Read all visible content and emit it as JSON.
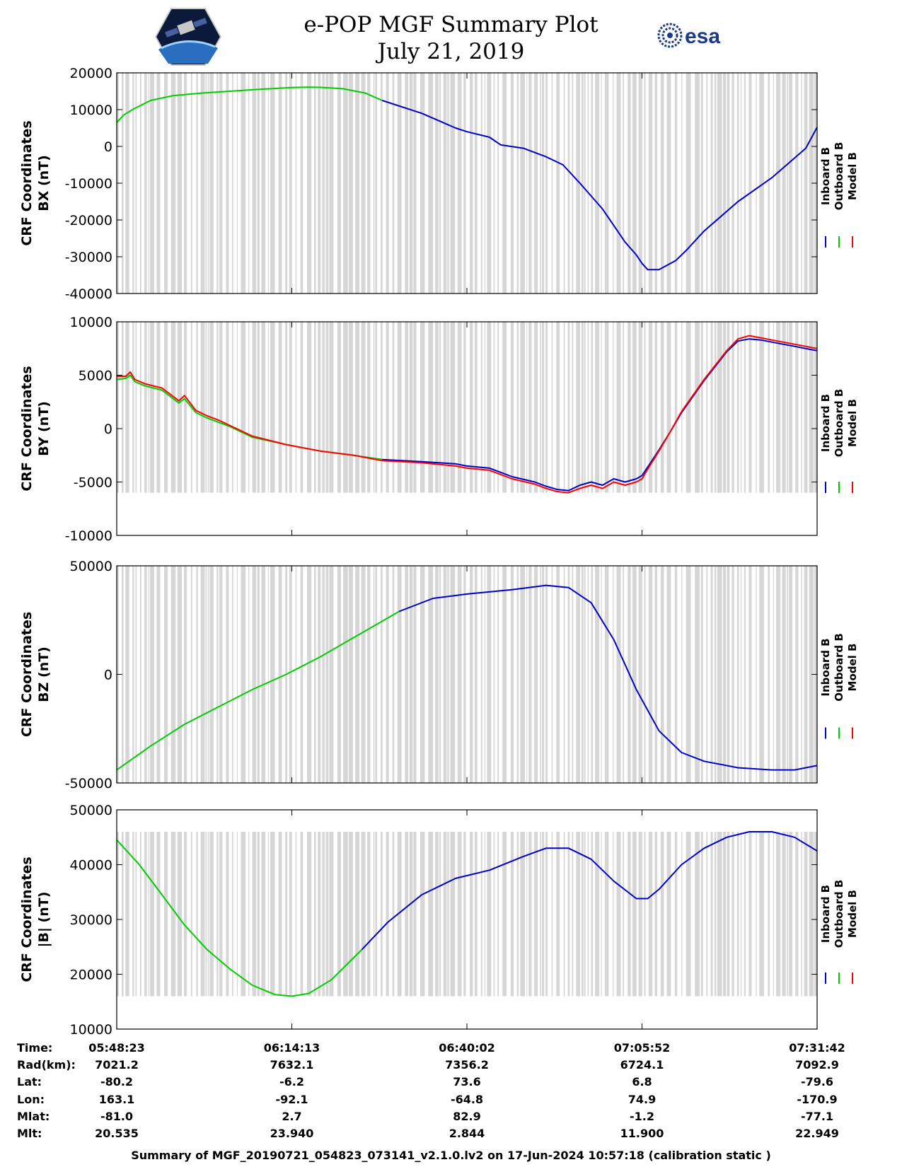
{
  "header": {
    "title": "e-POP MGF Summary Plot",
    "date": "July 21, 2019",
    "left_logo": "cassiope-mission-logo",
    "right_logo": "esa-logo",
    "right_logo_text": "esa"
  },
  "legend_labels": [
    "Inboard B",
    "Outboard B",
    "Model B"
  ],
  "chart_data": [
    {
      "type": "line",
      "name": "BX",
      "ylabel": [
        "CRF Coordinates",
        "BX (nT)"
      ],
      "ylim": [
        -40000,
        20000
      ],
      "yticks": [
        20000,
        10000,
        0,
        -10000,
        -20000,
        -30000,
        -40000
      ],
      "ytick_labels": [
        "20000",
        "10000",
        "0",
        "-10000",
        "-20000",
        "-30000",
        "-40000"
      ],
      "xlim": [
        0,
        6200
      ],
      "xticks": [
        0,
        1550,
        3100,
        4650,
        6200
      ],
      "shading_range": [
        -40000,
        20000
      ],
      "switch_x": 2350,
      "series": [
        {
          "name": "Outboard B",
          "color": "#00cc00",
          "x": [
            0,
            60,
            150,
            300,
            500,
            750,
            1000,
            1300,
            1550,
            1700,
            1800,
            2000,
            2200,
            2350
          ],
          "y": [
            6500,
            8500,
            10200,
            12500,
            13800,
            14500,
            15000,
            15600,
            16000,
            16100,
            16050,
            15700,
            14500,
            12500
          ]
        },
        {
          "name": "Inboard B",
          "color": "#0000cc",
          "x": [
            2350,
            2700,
            3000,
            3100,
            3300,
            3400,
            3600,
            3800,
            3950,
            4100,
            4300,
            4400,
            4500,
            4600,
            4650,
            4700,
            4800,
            4950,
            5050,
            5200,
            5500,
            5800,
            6100,
            6200
          ],
          "y": [
            12500,
            9000,
            5000,
            4000,
            2500,
            400,
            -500,
            -2800,
            -5000,
            -10000,
            -17000,
            -21500,
            -26000,
            -29500,
            -31800,
            -33500,
            -33500,
            -31000,
            -28000,
            -23000,
            -15000,
            -8500,
            -500,
            5200
          ]
        },
        {
          "name": "Model B",
          "color": "#ff0000",
          "x": [],
          "y": []
        }
      ]
    },
    {
      "type": "line",
      "name": "BY",
      "ylabel": [
        "CRF Coordinates",
        "BY (nT)"
      ],
      "ylim": [
        -10000,
        10000
      ],
      "yticks": [
        10000,
        5000,
        0,
        -5000,
        -10000
      ],
      "ytick_labels": [
        "10000",
        "5000",
        "0",
        "-5000",
        "-10000"
      ],
      "xlim": [
        0,
        6200
      ],
      "xticks": [
        0,
        1550,
        3100,
        4650,
        6200
      ],
      "shading_range": [
        -6000,
        10000
      ],
      "switch_x": 2350,
      "series": [
        {
          "name": "Outboard B",
          "color": "#00cc00",
          "x": [
            0,
            80,
            120,
            160,
            250,
            400,
            550,
            600,
            700,
            800,
            900,
            1000,
            1200,
            1500,
            1800,
            2100,
            2350
          ],
          "y": [
            4600,
            4700,
            5000,
            4400,
            4000,
            3600,
            2400,
            2800,
            1500,
            1000,
            600,
            200,
            -800,
            -1500,
            -2100,
            -2500,
            -2900
          ]
        },
        {
          "name": "Inboard B",
          "color": "#0000cc",
          "x": [
            2350,
            2700,
            3000,
            3100,
            3300,
            3400,
            3500,
            3700,
            3800,
            3900,
            4000,
            4100,
            4200,
            4300,
            4400,
            4500,
            4600,
            4650,
            4700,
            4800,
            4900,
            5000,
            5200,
            5400,
            5500,
            5600,
            5700,
            5800,
            5900,
            6000,
            6100,
            6200
          ],
          "y": [
            -2900,
            -3100,
            -3300,
            -3500,
            -3700,
            -4100,
            -4500,
            -5000,
            -5400,
            -5700,
            -5800,
            -5300,
            -5000,
            -5300,
            -4700,
            -5000,
            -4700,
            -4400,
            -3600,
            -2000,
            -300,
            1500,
            4500,
            7200,
            8200,
            8400,
            8300,
            8100,
            7900,
            7700,
            7500,
            7300
          ]
        },
        {
          "name": "Model B",
          "color": "#ff0000",
          "x": [
            0,
            80,
            120,
            160,
            250,
            400,
            550,
            600,
            700,
            800,
            900,
            1000,
            1200,
            1500,
            1800,
            2100,
            2350,
            2700,
            3000,
            3100,
            3300,
            3400,
            3500,
            3700,
            3800,
            3900,
            4000,
            4100,
            4200,
            4300,
            4400,
            4500,
            4600,
            4650,
            4700,
            4800,
            4900,
            5000,
            5200,
            5400,
            5500,
            5600,
            5700,
            5800,
            5900,
            6000,
            6100,
            6200
          ],
          "y": [
            4900,
            4900,
            5300,
            4600,
            4200,
            3800,
            2600,
            3100,
            1700,
            1200,
            800,
            300,
            -700,
            -1500,
            -2100,
            -2500,
            -3000,
            -3200,
            -3500,
            -3700,
            -3900,
            -4300,
            -4700,
            -5200,
            -5600,
            -5900,
            -6000,
            -5600,
            -5300,
            -5600,
            -5000,
            -5300,
            -5000,
            -4700,
            -3800,
            -2100,
            -300,
            1600,
            4600,
            7300,
            8400,
            8700,
            8500,
            8300,
            8100,
            7900,
            7700,
            7500
          ]
        }
      ]
    },
    {
      "type": "line",
      "name": "BZ",
      "ylabel": [
        "CRF Coordinates",
        "BZ (nT)"
      ],
      "ylim": [
        -50000,
        50000
      ],
      "yticks": [
        50000,
        0,
        -50000
      ],
      "ytick_labels": [
        "50000",
        "0",
        "-50000"
      ],
      "xlim": [
        0,
        6200
      ],
      "xticks": [
        0,
        1550,
        3100,
        4650,
        6200
      ],
      "shading_range": [
        -50000,
        50000
      ],
      "switch_x": 2500,
      "series": [
        {
          "name": "Outboard B",
          "color": "#00cc00",
          "x": [
            0,
            300,
            600,
            900,
            1200,
            1500,
            1800,
            2100,
            2500
          ],
          "y": [
            -44000,
            -33000,
            -23000,
            -15000,
            -7000,
            0,
            8000,
            17000,
            29000
          ]
        },
        {
          "name": "Inboard B",
          "color": "#0000cc",
          "x": [
            2500,
            2800,
            3100,
            3500,
            3800,
            4000,
            4200,
            4400,
            4600,
            4800,
            5000,
            5200,
            5500,
            5800,
            6000,
            6200
          ],
          "y": [
            29000,
            35000,
            37000,
            39000,
            41000,
            40000,
            33000,
            16000,
            -7000,
            -26000,
            -36000,
            -40000,
            -43000,
            -44000,
            -44000,
            -42000
          ]
        },
        {
          "name": "Model B",
          "color": "#ff0000",
          "x": [],
          "y": []
        }
      ]
    },
    {
      "type": "line",
      "name": "|B|",
      "ylabel": [
        "CRF Coordinates",
        "|B| (nT)"
      ],
      "ylim": [
        10000,
        50000
      ],
      "yticks": [
        50000,
        40000,
        30000,
        20000,
        10000
      ],
      "ytick_labels": [
        "50000",
        "40000",
        "30000",
        "20000",
        "10000"
      ],
      "xlim": [
        0,
        6200
      ],
      "xticks": [
        0,
        1550,
        3100,
        4650,
        6200
      ],
      "shading_range": [
        16000,
        46000
      ],
      "switch_x": 2170,
      "series": [
        {
          "name": "Outboard B",
          "color": "#00cc00",
          "x": [
            0,
            200,
            400,
            600,
            800,
            1000,
            1200,
            1400,
            1550,
            1700,
            1900,
            2170
          ],
          "y": [
            44500,
            40000,
            34500,
            29000,
            24500,
            21000,
            18000,
            16300,
            16000,
            16500,
            19000,
            24500
          ]
        },
        {
          "name": "Inboard B",
          "color": "#0000cc",
          "x": [
            2170,
            2400,
            2700,
            3000,
            3300,
            3600,
            3800,
            4000,
            4200,
            4400,
            4600,
            4700,
            4800,
            5000,
            5200,
            5400,
            5600,
            5800,
            6000,
            6200
          ],
          "y": [
            24500,
            29500,
            34500,
            37500,
            39000,
            41500,
            43000,
            43000,
            41000,
            37000,
            33800,
            33800,
            35500,
            40000,
            43000,
            45000,
            46000,
            46000,
            45000,
            42500
          ]
        },
        {
          "name": "Model B",
          "color": "#ff0000",
          "x": [],
          "y": []
        }
      ]
    }
  ],
  "info_table": {
    "row_labels": [
      "Time:",
      "Rad(km):",
      "Lat:",
      "Lon:",
      "Mlat:",
      "Mlt:"
    ],
    "columns": [
      [
        "05:48:23",
        "7021.2",
        "-80.2",
        "163.1",
        "-81.0",
        "20.535"
      ],
      [
        "06:14:13",
        "7632.1",
        "-6.2",
        "-92.1",
        "2.7",
        "23.940"
      ],
      [
        "06:40:02",
        "7356.2",
        "73.6",
        "-64.8",
        "82.9",
        "2.844"
      ],
      [
        "07:05:52",
        "6724.1",
        "6.8",
        "74.9",
        "-1.2",
        "11.900"
      ],
      [
        "07:31:42",
        "7092.9",
        "-79.6",
        "-170.9",
        "-77.1",
        "22.949"
      ]
    ]
  },
  "footer": "Summary of MGF_20190721_054823_073141_v2.1.0.lv2 on 17-Jun-2024 10:57:18 (calibration static )"
}
